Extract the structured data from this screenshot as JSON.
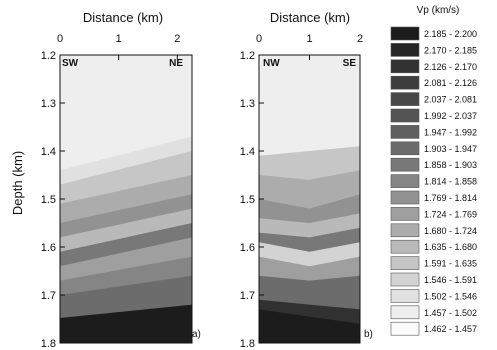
{
  "chart_data": [
    {
      "type": "heatmap",
      "panel_label": "a)",
      "xlabel": "Distance (km)",
      "ylabel": "Depth (km)",
      "xlim": [
        0,
        2.25
      ],
      "ylim": [
        1.2,
        1.8
      ],
      "y_inverted": true,
      "x_ticks": [
        "0",
        "1",
        "2"
      ],
      "x_tick_values": [
        0,
        1,
        2
      ],
      "y_ticks": [
        "1.2",
        "1.3",
        "1.4",
        "1.5",
        "1.6",
        "1.7",
        "1.8"
      ],
      "y_tick_values": [
        1.2,
        1.3,
        1.4,
        1.5,
        1.6,
        1.7,
        1.8
      ],
      "corner_left": "SW",
      "corner_right": "NE",
      "layers": [
        {
          "class": 17,
          "top_left": 1.2,
          "top_right": 1.2
        },
        {
          "class": 16,
          "top_left": 1.44,
          "top_right": 1.37
        },
        {
          "class": 14,
          "top_left": 1.47,
          "top_right": 1.4
        },
        {
          "class": 12,
          "top_left": 1.51,
          "top_right": 1.45
        },
        {
          "class": 10,
          "top_left": 1.55,
          "top_right": 1.49
        },
        {
          "class": 13,
          "top_left": 1.58,
          "top_right": 1.52
        },
        {
          "class": 8,
          "top_left": 1.61,
          "top_right": 1.55
        },
        {
          "class": 11,
          "top_left": 1.64,
          "top_right": 1.58
        },
        {
          "class": 9,
          "top_left": 1.67,
          "top_right": 1.62
        },
        {
          "class": 7,
          "top_left": 1.7,
          "top_right": 1.66
        },
        {
          "class": 0,
          "top_left": 1.748,
          "top_right": 1.72
        }
      ]
    },
    {
      "type": "heatmap",
      "panel_label": "b)",
      "xlabel": "Distance (km)",
      "ylabel": "",
      "xlim": [
        0,
        2
      ],
      "ylim": [
        1.2,
        1.8
      ],
      "y_inverted": true,
      "x_ticks": [
        "0",
        "1",
        "2"
      ],
      "x_tick_values": [
        0,
        1,
        2
      ],
      "y_ticks": [
        "1.2",
        "1.3",
        "1.4",
        "1.5",
        "1.6",
        "1.7",
        "1.8"
      ],
      "y_tick_values": [
        1.2,
        1.3,
        1.4,
        1.5,
        1.6,
        1.7,
        1.8
      ],
      "corner_left": "NW",
      "corner_right": "SE",
      "layers": [
        {
          "class": 17,
          "top_left": 1.2,
          "top_mid": 1.2,
          "top_right": 1.2
        },
        {
          "class": 14,
          "top_left": 1.41,
          "top_mid": 1.4,
          "top_right": 1.39
        },
        {
          "class": 12,
          "top_left": 1.45,
          "top_mid": 1.46,
          "top_right": 1.44
        },
        {
          "class": 10,
          "top_left": 1.5,
          "top_mid": 1.52,
          "top_right": 1.49
        },
        {
          "class": 13,
          "top_left": 1.54,
          "top_mid": 1.55,
          "top_right": 1.53
        },
        {
          "class": 8,
          "top_left": 1.57,
          "top_mid": 1.58,
          "top_right": 1.56
        },
        {
          "class": 15,
          "top_left": 1.59,
          "top_mid": 1.61,
          "top_right": 1.59
        },
        {
          "class": 11,
          "top_left": 1.62,
          "top_mid": 1.64,
          "top_right": 1.62
        },
        {
          "class": 7,
          "top_left": 1.66,
          "top_mid": 1.67,
          "top_right": 1.66
        },
        {
          "class": 2,
          "top_left": 1.71,
          "top_mid": 1.72,
          "top_right": 1.73
        },
        {
          "class": 0,
          "top_left": 1.73,
          "top_mid": 1.745,
          "top_right": 1.76
        }
      ]
    }
  ],
  "legend": {
    "title": "Vp (km/s)",
    "entries": [
      {
        "label": "2.185 - 2.200",
        "color": "#1c1c1c"
      },
      {
        "label": "2.170 - 2.185",
        "color": "#262626"
      },
      {
        "label": "2.126 - 2.170",
        "color": "#313131"
      },
      {
        "label": "2.081 - 2.126",
        "color": "#3d3d3d"
      },
      {
        "label": "2.037 - 2.081",
        "color": "#484848"
      },
      {
        "label": "1.992 - 2.037",
        "color": "#545454"
      },
      {
        "label": "1.947 - 1.992",
        "color": "#606060"
      },
      {
        "label": "1.903 - 1.947",
        "color": "#6c6c6c"
      },
      {
        "label": "1.858 - 1.903",
        "color": "#787878"
      },
      {
        "label": "1.814 - 1.858",
        "color": "#858585"
      },
      {
        "label": "1.769 - 1.814",
        "color": "#929292"
      },
      {
        "label": "1.724 - 1.769",
        "color": "#9f9f9f"
      },
      {
        "label": "1.680 - 1.724",
        "color": "#acacac"
      },
      {
        "label": "1.635 - 1.680",
        "color": "#b9b9b9"
      },
      {
        "label": "1.591 - 1.635",
        "color": "#c6c6c6"
      },
      {
        "label": "1.546 - 1.591",
        "color": "#d3d3d3"
      },
      {
        "label": "1.502 - 1.546",
        "color": "#e0e0e0"
      },
      {
        "label": "1.457 - 1.502",
        "color": "#eeeeee"
      },
      {
        "label": "1.462 - 1.457",
        "color": "#fbfbfb"
      }
    ]
  }
}
